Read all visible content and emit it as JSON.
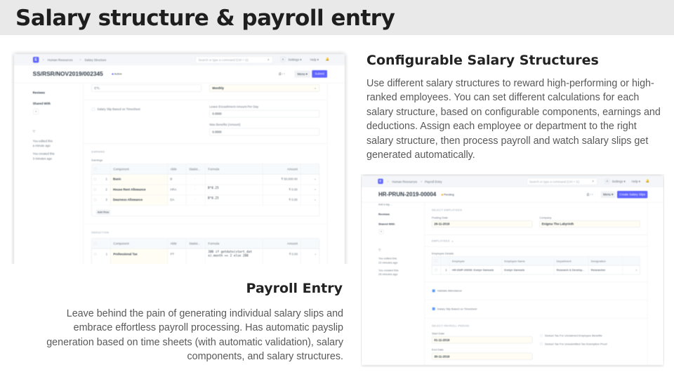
{
  "slide": {
    "title": "Salary structure & payroll entry"
  },
  "right_section": {
    "title": "Configurable Salary Structures",
    "text": "Use different salary structures to reward high-performing or high-ranked employees. You can set different calculations for each salary structure, based on configurable components, earnings and deductions. Assign each employee or department to the right salary structure, then process payroll and watch salary slips get generated automatically."
  },
  "left_section": {
    "title": "Payroll Entry",
    "text": "Leave behind the pain of generating individual salary slips and embrace effortless payroll processing. Has automatic payslip generation based on time sheets (with automatic validation), salary components, and salary structures."
  },
  "shot1": {
    "breadcrumbs": [
      "Human Resources",
      "Salary Structure"
    ],
    "search_placeholder": "Search or type a command (Ctrl + G)",
    "avatar": "A",
    "settings": "Settings ▾",
    "help": "Help ▾",
    "doc_title": "SS/RSR/NOV2019/002345",
    "status": "Active",
    "menu": "Menu ▾",
    "submit": "Submit",
    "sidebar": {
      "reviews": "Reviews",
      "shared_with": "Shared With",
      "edited": "You edited this",
      "edited_ago": "a minute ago",
      "created": "You created this",
      "created_ago": "3 minutes ago"
    },
    "company_value": "ETL",
    "frequency_value": "Monthly",
    "timesheet_label": "Salary Slip Based on Timesheet",
    "leave_label": "Leave Encashment Amount Per Day",
    "leave_value": "0.0000",
    "max_label": "Max Benefits (Amount)",
    "max_value": "0.0000",
    "earning_section": "EARNING",
    "earnings_label": "Earnings",
    "columns": [
      "Component",
      "Abbr",
      "Statist...",
      "Formula",
      "Amount"
    ],
    "earnings": [
      {
        "no": "1",
        "component": "Basic",
        "abbr": "B",
        "formula": "",
        "amount": "₹ 50,000.00"
      },
      {
        "no": "2",
        "component": "House Rent Allowance",
        "abbr": "HRA",
        "formula": "B*0.25",
        "amount": "₹ 0.00"
      },
      {
        "no": "3",
        "component": "Dearness Allowance",
        "abbr": "DA",
        "formula": "B*0.25",
        "amount": "₹ 0.00"
      }
    ],
    "add_row": "Add Row",
    "deduction_section": "DEDUCTION",
    "deductions": [
      {
        "no": "1",
        "component": "Professional Tax",
        "abbr": "PT",
        "formula": "300 if getdate(start_dat",
        "formula2": "e).month == 2 else 200",
        "amount": "₹ 0.00"
      }
    ]
  },
  "shot2": {
    "breadcrumbs": [
      "Human Resources",
      "Payroll Entry"
    ],
    "search_placeholder": "Search or type a command (Ctrl + G)",
    "avatar": "A",
    "settings": "Settings ▾",
    "help": "Help ▾",
    "doc_title": "HR-PRUN-2019-00004",
    "status": "Pending",
    "menu": "Menu ▾",
    "create": "Create Salary Slips",
    "sidebar": {
      "tag": "Add a tag ...",
      "reviews": "Reviews",
      "shared_with": "Shared With",
      "edited": "You edited this",
      "edited_ago": "22 minutes ago",
      "created": "You created this",
      "created_ago": "26 minutes ago"
    },
    "select_employees": "SELECT EMPLOYEES",
    "posting_label": "Posting Date",
    "posting_value": "29-11-2019",
    "company_label": "Company",
    "company_value": "Enigma The Labyrinth",
    "employees_section": "EMPLOYEES",
    "employee_details": "Employee Details",
    "columns": [
      "Employee",
      "Employee Name",
      "Department",
      "Designation"
    ],
    "rows": [
      {
        "no": "1",
        "employee": "HR-EMP-00006: Evelyn Samuels",
        "name": "Evelyn Samuels",
        "department": "Research & Develop...",
        "designation": "Researcher"
      }
    ],
    "validate_attendance": "Validate Attendance",
    "timesheet_label": "Salary Slip Based on Timesheet",
    "payroll_period": "SELECT PAYROLL PERIOD",
    "start_label": "Start Date",
    "start_value": "01-11-2019",
    "end_label": "End Date",
    "end_value": "30-11-2019",
    "deduct1": "Deduct Tax For Unclaimed Employee Benefits",
    "deduct2": "Deduct Tax For Unsubmitted Tax Exemption Proof"
  },
  "colors": {
    "accent": "#5e64ff",
    "active": "#5e64ff",
    "pending": "#ffa00a"
  }
}
